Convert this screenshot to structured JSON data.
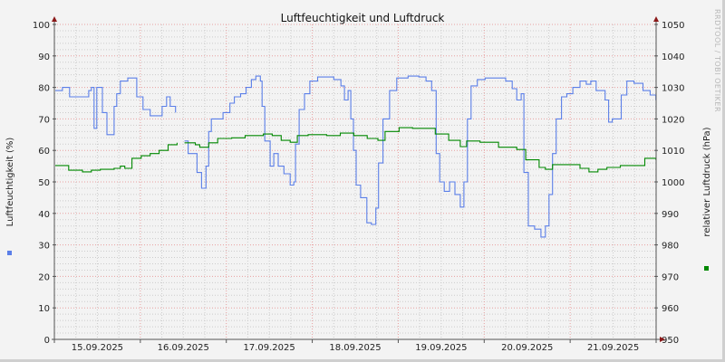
{
  "chart_data": {
    "type": "line",
    "title": "Luftfeuchtigkeit und Luftdruck",
    "watermark": "RRDTOOL / TOBI OETIKER",
    "ylabel": "Luftfeuchtigkeit (%)",
    "y2label": "relativer Luftdruck (hPa)",
    "ylim": [
      0,
      100
    ],
    "y2lim": [
      950,
      1050
    ],
    "yticks": [
      "0",
      "10",
      "20",
      "30",
      "40",
      "50",
      "60",
      "70",
      "80",
      "90",
      "100"
    ],
    "y2ticks": [
      "950",
      "960",
      "970",
      "980",
      "990",
      "1000",
      "1010",
      "1020",
      "1030",
      "1040",
      "1050"
    ],
    "xlim": [
      "15.09.2025 00:00",
      "22.09.2025 00:00"
    ],
    "xticks": [
      "15.09.2025",
      "16.09.2025",
      "17.09.2025",
      "18.09.2025",
      "19.09.2025",
      "20.09.2025",
      "21.09.2025"
    ],
    "grid": true,
    "colors": {
      "humidity": "#5b7fe8",
      "pressure": "#008800",
      "major_grid": "#e8a0a0",
      "minor_grid": "#cccccc",
      "axis": "#555555",
      "arrow": "#8b1a1a"
    },
    "series": [
      {
        "key": "humidity",
        "axis": "left",
        "points": [
          [
            "15.09 00:15",
            79
          ],
          [
            "15.09 02:15",
            80
          ],
          [
            "15.09 04:15",
            77
          ],
          [
            "15.09 07:20",
            77
          ],
          [
            "15.09 09:35",
            79
          ],
          [
            "15.09 10:20",
            80
          ],
          [
            "15.09 11:05",
            67
          ],
          [
            "15.09 11:50",
            80
          ],
          [
            "15.09 13:25",
            72
          ],
          [
            "15.09 14:40",
            65
          ],
          [
            "15.09 16:40",
            74
          ],
          [
            "15.09 17:25",
            78
          ],
          [
            "15.09 18:25",
            82
          ],
          [
            "15.09 20:30",
            83
          ],
          [
            "15.09 22:00",
            83
          ],
          [
            "15.09 23:00",
            77
          ],
          [
            "16.09 00:45",
            73
          ],
          [
            "16.09 02:45",
            71
          ],
          [
            "16.09 04:30",
            71
          ],
          [
            "16.09 06:05",
            74
          ],
          [
            "16.09 07:20",
            77
          ],
          [
            "16.09 08:20",
            74
          ],
          [
            "16.09 09:50",
            72
          ],
          [
            "16.09 11:00",
            null
          ],
          [
            "16.09 12:20",
            63
          ],
          [
            "16.09 13:20",
            59
          ],
          [
            "16.09 14:50",
            59
          ],
          [
            "16.09 15:50",
            53
          ],
          [
            "16.09 17:05",
            48
          ],
          [
            "16.09 18:20",
            55
          ],
          [
            "16.09 19:05",
            66
          ],
          [
            "16.09 19:50",
            70
          ],
          [
            "16.09 21:35",
            70
          ],
          [
            "16.09 23:05",
            72
          ],
          [
            "17.09 01:00",
            75
          ],
          [
            "17.09 02:15",
            77
          ],
          [
            "17.09 04:00",
            78
          ],
          [
            "17.09 05:30",
            80
          ],
          [
            "17.09 07:00",
            82.5
          ],
          [
            "17.09 08:15",
            83.6
          ],
          [
            "17.09 09:30",
            82
          ],
          [
            "17.09 10:00",
            74
          ],
          [
            "17.09 10:45",
            63
          ],
          [
            "17.09 12:15",
            55
          ],
          [
            "17.09 13:15",
            59
          ],
          [
            "17.09 14:30",
            55
          ],
          [
            "17.09 16:05",
            52.6
          ],
          [
            "17.09 17:50",
            49
          ],
          [
            "17.09 18:50",
            50
          ],
          [
            "17.09 19:20",
            62
          ],
          [
            "17.09 20:20",
            73
          ],
          [
            "17.09 21:50",
            78
          ],
          [
            "17.09 23:20",
            82
          ],
          [
            "18.09 01:30",
            83.3
          ],
          [
            "18.09 04:00",
            83.3
          ],
          [
            "18.09 06:00",
            82.5
          ],
          [
            "18.09 08:00",
            80.5
          ],
          [
            "18.09 09:00",
            76
          ],
          [
            "18.09 10:00",
            79
          ],
          [
            "18.09 10:45",
            70
          ],
          [
            "18.09 11:30",
            60
          ],
          [
            "18.09 12:15",
            49
          ],
          [
            "18.09 13:30",
            45
          ],
          [
            "18.09 15:15",
            37
          ],
          [
            "18.09 16:30",
            36.5
          ],
          [
            "18.09 17:45",
            41.7
          ],
          [
            "18.09 18:30",
            56
          ],
          [
            "18.09 19:45",
            70
          ],
          [
            "18.09 21:35",
            79
          ],
          [
            "18.09 23:35",
            83
          ],
          [
            "19.09 02:45",
            83.6
          ],
          [
            "19.09 05:45",
            83.3
          ],
          [
            "19.09 07:45",
            82
          ],
          [
            "19.09 09:20",
            79
          ],
          [
            "19.09 10:05",
            79
          ],
          [
            "19.09 10:35",
            59
          ],
          [
            "19.09 11:35",
            50
          ],
          [
            "19.09 12:50",
            47
          ],
          [
            "19.09 14:20",
            50
          ],
          [
            "19.09 15:50",
            46
          ],
          [
            "19.09 17:20",
            42
          ],
          [
            "19.09 18:20",
            50
          ],
          [
            "19.09 19:20",
            70
          ],
          [
            "19.09 20:20",
            80.5
          ],
          [
            "19.09 22:05",
            82.5
          ],
          [
            "20.09 00:15",
            83
          ],
          [
            "20.09 04:00",
            83
          ],
          [
            "20.09 06:00",
            82
          ],
          [
            "20.09 07:50",
            79.6
          ],
          [
            "20.09 09:05",
            76
          ],
          [
            "20.09 10:20",
            78
          ],
          [
            "20.09 11:05",
            53
          ],
          [
            "20.09 12:20",
            36
          ],
          [
            "20.09 14:05",
            35
          ],
          [
            "20.09 15:50",
            32.5
          ],
          [
            "20.09 17:05",
            36
          ],
          [
            "20.09 18:05",
            46
          ],
          [
            "20.09 19:05",
            59
          ],
          [
            "20.09 20:05",
            70
          ],
          [
            "20.09 21:35",
            77
          ],
          [
            "20.09 23:05",
            78
          ],
          [
            "21.09 00:45",
            80
          ],
          [
            "21.09 02:45",
            82
          ],
          [
            "21.09 04:30",
            81
          ],
          [
            "21.09 05:45",
            82
          ],
          [
            "21.09 07:15",
            79
          ],
          [
            "21.09 08:30",
            79
          ],
          [
            "21.09 09:45",
            76
          ],
          [
            "21.09 10:45",
            69
          ],
          [
            "21.09 11:45",
            70
          ],
          [
            "21.09 13:30",
            70
          ],
          [
            "21.09 14:15",
            77.6
          ],
          [
            "21.09 15:50",
            82
          ],
          [
            "21.09 17:50",
            81.3
          ],
          [
            "21.09 20:20",
            79
          ],
          [
            "21.09 22:20",
            77.6
          ],
          [
            "21.09 23:55",
            76
          ]
        ]
      },
      {
        "key": "pressure",
        "axis": "right",
        "points": [
          [
            "15.09 00:15",
            1005.2
          ],
          [
            "15.09 04:00",
            1003.7
          ],
          [
            "15.09 07:50",
            1003.2
          ],
          [
            "15.09 10:20",
            1003.7
          ],
          [
            "15.09 12:50",
            1004
          ],
          [
            "15.09 16:40",
            1004.3
          ],
          [
            "15.09 18:25",
            1005
          ],
          [
            "15.09 19:40",
            1004.3
          ],
          [
            "15.09 21:40",
            1007.5
          ],
          [
            "16.09 00:15",
            1008.3
          ],
          [
            "16.09 02:45",
            1009
          ],
          [
            "16.09 05:15",
            1010
          ],
          [
            "16.09 07:45",
            1011.8
          ],
          [
            "16.09 10:15",
            1012.4
          ],
          [
            "16.09 11:00",
            null
          ],
          [
            "16.09 12:20",
            1012.4
          ],
          [
            "16.09 15:20",
            1011.8
          ],
          [
            "16.09 16:35",
            1011
          ],
          [
            "16.09 19:05",
            1012.4
          ],
          [
            "16.09 21:35",
            1013.8
          ],
          [
            "17.09 01:30",
            1014
          ],
          [
            "17.09 05:15",
            1014.7
          ],
          [
            "17.09 10:20",
            1015.2
          ],
          [
            "17.09 12:50",
            1014.7
          ],
          [
            "17.09 15:20",
            1013.2
          ],
          [
            "17.09 17:50",
            1012.6
          ],
          [
            "17.09 19:50",
            1014.7
          ],
          [
            "17.09 22:50",
            1015
          ],
          [
            "18.09 04:00",
            1014.7
          ],
          [
            "18.09 07:50",
            1015.5
          ],
          [
            "18.09 11:35",
            1014.7
          ],
          [
            "18.09 15:20",
            1013.8
          ],
          [
            "18.09 18:20",
            1013.2
          ],
          [
            "18.09 20:20",
            1016
          ],
          [
            "19.09 00:15",
            1017.2
          ],
          [
            "19.09 04:00",
            1017
          ],
          [
            "19.09 07:50",
            1017
          ],
          [
            "19.09 10:20",
            1015.2
          ],
          [
            "19.09 14:05",
            1013.2
          ],
          [
            "19.09 17:20",
            1011.2
          ],
          [
            "19.09 19:05",
            1013
          ],
          [
            "19.09 22:50",
            1012.6
          ],
          [
            "20.09 04:00",
            1011
          ],
          [
            "20.09 09:05",
            1010.3
          ],
          [
            "20.09 11:35",
            1007
          ],
          [
            "20.09 15:20",
            1004.6
          ],
          [
            "20.09 17:05",
            1004
          ],
          [
            "20.09 19:05",
            1005.5
          ],
          [
            "20.09 22:50",
            1005.5
          ],
          [
            "21.09 02:45",
            1004.3
          ],
          [
            "21.09 05:15",
            1003.2
          ],
          [
            "21.09 07:45",
            1004
          ],
          [
            "21.09 10:15",
            1004.6
          ],
          [
            "21.09 14:00",
            1005.2
          ],
          [
            "21.09 19:05",
            1005.2
          ],
          [
            "21.09 20:50",
            1007.5
          ],
          [
            "21.09 23:55",
            1007
          ]
        ]
      }
    ]
  }
}
